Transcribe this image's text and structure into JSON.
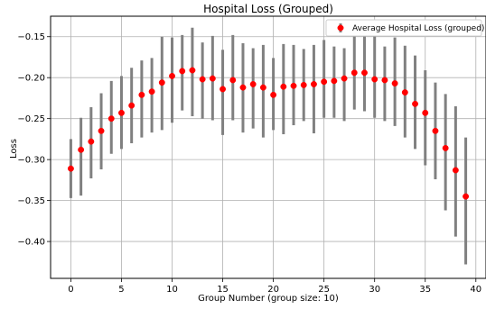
{
  "chart_data": {
    "type": "scatter",
    "title": "Hospital Loss (Grouped)",
    "xlabel": "Group Number (group size: 10)",
    "ylabel": "Loss",
    "xlim": [
      -2,
      41
    ],
    "ylim": [
      -0.445,
      -0.125
    ],
    "xticks": [
      0,
      5,
      10,
      15,
      20,
      25,
      30,
      35,
      40
    ],
    "yticks": [
      -0.4,
      -0.35,
      -0.3,
      -0.25,
      -0.2,
      -0.15
    ],
    "xtick_labels": [
      "0",
      "5",
      "10",
      "15",
      "20",
      "25",
      "30",
      "35",
      "40"
    ],
    "ytick_labels": [
      "−0.40",
      "−0.35",
      "−0.30",
      "−0.25",
      "−0.20",
      "−0.15"
    ],
    "grid": true,
    "legend_position": "top-right",
    "marker_color": "#ff0000",
    "errorbar_color": "#808080",
    "series": [
      {
        "name": "Average Hospital Loss (grouped)",
        "points": [
          {
            "x": 0,
            "y": -0.311,
            "low": -0.347,
            "high": -0.275
          },
          {
            "x": 1,
            "y": -0.288,
            "low": -0.344,
            "high": -0.249
          },
          {
            "x": 2,
            "y": -0.278,
            "low": -0.323,
            "high": -0.236
          },
          {
            "x": 3,
            "y": -0.265,
            "low": -0.312,
            "high": -0.219
          },
          {
            "x": 4,
            "y": -0.25,
            "low": -0.293,
            "high": -0.204
          },
          {
            "x": 5,
            "y": -0.243,
            "low": -0.287,
            "high": -0.198
          },
          {
            "x": 6,
            "y": -0.234,
            "low": -0.28,
            "high": -0.188
          },
          {
            "x": 7,
            "y": -0.221,
            "low": -0.273,
            "high": -0.179
          },
          {
            "x": 8,
            "y": -0.217,
            "low": -0.267,
            "high": -0.176
          },
          {
            "x": 9,
            "y": -0.206,
            "low": -0.264,
            "high": -0.15
          },
          {
            "x": 10,
            "y": -0.198,
            "low": -0.255,
            "high": -0.151
          },
          {
            "x": 11,
            "y": -0.192,
            "low": -0.24,
            "high": -0.148
          },
          {
            "x": 12,
            "y": -0.191,
            "low": -0.247,
            "high": -0.139
          },
          {
            "x": 13,
            "y": -0.202,
            "low": -0.25,
            "high": -0.157
          },
          {
            "x": 14,
            "y": -0.201,
            "low": -0.252,
            "high": -0.149
          },
          {
            "x": 15,
            "y": -0.214,
            "low": -0.27,
            "high": -0.166
          },
          {
            "x": 16,
            "y": -0.203,
            "low": -0.252,
            "high": -0.148
          },
          {
            "x": 17,
            "y": -0.212,
            "low": -0.267,
            "high": -0.158
          },
          {
            "x": 18,
            "y": -0.208,
            "low": -0.262,
            "high": -0.164
          },
          {
            "x": 19,
            "y": -0.212,
            "low": -0.273,
            "high": -0.16
          },
          {
            "x": 20,
            "y": -0.221,
            "low": -0.264,
            "high": -0.176
          },
          {
            "x": 21,
            "y": -0.211,
            "low": -0.269,
            "high": -0.159
          },
          {
            "x": 22,
            "y": -0.21,
            "low": -0.258,
            "high": -0.16
          },
          {
            "x": 23,
            "y": -0.209,
            "low": -0.253,
            "high": -0.165
          },
          {
            "x": 24,
            "y": -0.208,
            "low": -0.268,
            "high": -0.16
          },
          {
            "x": 25,
            "y": -0.205,
            "low": -0.249,
            "high": -0.154
          },
          {
            "x": 26,
            "y": -0.204,
            "low": -0.249,
            "high": -0.162
          },
          {
            "x": 27,
            "y": -0.201,
            "low": -0.253,
            "high": -0.164
          },
          {
            "x": 28,
            "y": -0.194,
            "low": -0.239,
            "high": -0.149
          },
          {
            "x": 29,
            "y": -0.194,
            "low": -0.241,
            "high": -0.148
          },
          {
            "x": 30,
            "y": -0.202,
            "low": -0.249,
            "high": -0.148
          },
          {
            "x": 31,
            "y": -0.203,
            "low": -0.253,
            "high": -0.162
          },
          {
            "x": 32,
            "y": -0.207,
            "low": -0.259,
            "high": -0.151
          },
          {
            "x": 33,
            "y": -0.218,
            "low": -0.273,
            "high": -0.161
          },
          {
            "x": 34,
            "y": -0.232,
            "low": -0.287,
            "high": -0.173
          },
          {
            "x": 35,
            "y": -0.243,
            "low": -0.307,
            "high": -0.191
          },
          {
            "x": 36,
            "y": -0.265,
            "low": -0.324,
            "high": -0.206
          },
          {
            "x": 37,
            "y": -0.286,
            "low": -0.362,
            "high": -0.22
          },
          {
            "x": 38,
            "y": -0.313,
            "low": -0.394,
            "high": -0.235
          },
          {
            "x": 39,
            "y": -0.345,
            "low": -0.428,
            "high": -0.273
          }
        ]
      }
    ]
  }
}
